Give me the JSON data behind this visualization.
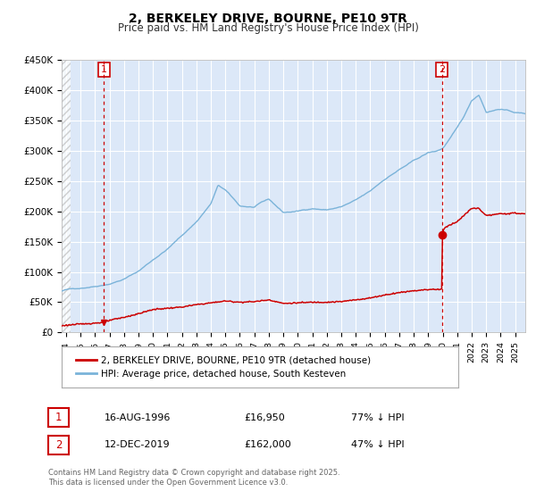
{
  "title": "2, BERKELEY DRIVE, BOURNE, PE10 9TR",
  "subtitle": "Price paid vs. HM Land Registry's House Price Index (HPI)",
  "ylim": [
    0,
    450000
  ],
  "yticks": [
    0,
    50000,
    100000,
    150000,
    200000,
    250000,
    300000,
    350000,
    400000,
    450000
  ],
  "ytick_labels": [
    "£0",
    "£50K",
    "£100K",
    "£150K",
    "£200K",
    "£250K",
    "£300K",
    "£350K",
    "£400K",
    "£450K"
  ],
  "plot_bg_color": "#dce8f8",
  "hpi_color": "#7ab3d9",
  "price_color": "#cc0000",
  "vline_color": "#cc0000",
  "sale1_date_num": 1996.62,
  "sale1_price": 16950,
  "sale1_label": "1",
  "sale1_date_str": "16-AUG-1996",
  "sale1_price_str": "£16,950",
  "sale1_hpi_str": "77% ↓ HPI",
  "sale2_date_num": 2019.95,
  "sale2_price": 162000,
  "sale2_label": "2",
  "sale2_date_str": "12-DEC-2019",
  "sale2_price_str": "£162,000",
  "sale2_hpi_str": "47% ↓ HPI",
  "legend_label_price": "2, BERKELEY DRIVE, BOURNE, PE10 9TR (detached house)",
  "legend_label_hpi": "HPI: Average price, detached house, South Kesteven",
  "footnote": "Contains HM Land Registry data © Crown copyright and database right 2025.\nThis data is licensed under the Open Government Licence v3.0.",
  "xmin": 1993.7,
  "xmax": 2025.7
}
